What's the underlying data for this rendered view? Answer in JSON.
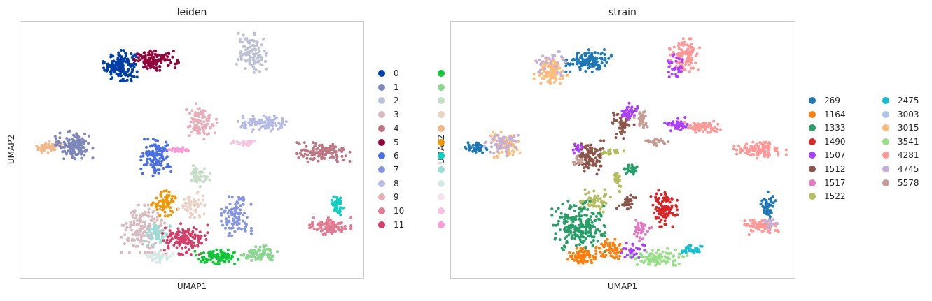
{
  "chart_data": [
    {
      "type": "scatter",
      "title": "leiden",
      "xlabel": "UMAP1",
      "ylabel": "UMAP2",
      "grid": false,
      "legend_position": "right",
      "legend": [
        {
          "label": "0",
          "color": "#023fa5"
        },
        {
          "label": "1",
          "color": "#7d87b9"
        },
        {
          "label": "2",
          "color": "#bec1d4"
        },
        {
          "label": "3",
          "color": "#d6bcc0"
        },
        {
          "label": "4",
          "color": "#bb7784"
        },
        {
          "label": "5",
          "color": "#8e063b"
        },
        {
          "label": "6",
          "color": "#4a6fe3"
        },
        {
          "label": "7",
          "color": "#8595e1"
        },
        {
          "label": "8",
          "color": "#b5bbe3"
        },
        {
          "label": "9",
          "color": "#e6afb9"
        },
        {
          "label": "10",
          "color": "#e07b91"
        },
        {
          "label": "11",
          "color": "#d33f6a"
        },
        {
          "label": "",
          "color": "#11c638"
        },
        {
          "label": "",
          "color": "#8dd593"
        },
        {
          "label": "",
          "color": "#c6dec7"
        },
        {
          "label": "",
          "color": "#ead3c6"
        },
        {
          "label": "",
          "color": "#f0b98d"
        },
        {
          "label": "",
          "color": "#ef9708"
        },
        {
          "label": "",
          "color": "#0fcfc0"
        },
        {
          "label": "",
          "color": "#9cded6"
        },
        {
          "label": "",
          "color": "#d5eae7"
        },
        {
          "label": "",
          "color": "#f3e1eb"
        },
        {
          "label": "",
          "color": "#f6c4e1"
        },
        {
          "label": "",
          "color": "#f79cd4"
        }
      ],
      "clusters": [
        {
          "color": "#023fa5",
          "cx": 0.29,
          "cy": 0.83,
          "rx": 0.045,
          "ry": 0.055,
          "n": 170
        },
        {
          "color": "#8e063b",
          "cx": 0.395,
          "cy": 0.85,
          "rx": 0.06,
          "ry": 0.035,
          "n": 130
        },
        {
          "color": "#bec1d4",
          "cx": 0.675,
          "cy": 0.88,
          "rx": 0.04,
          "ry": 0.07,
          "n": 110
        },
        {
          "color": "#f0b98d",
          "cx": 0.08,
          "cy": 0.51,
          "rx": 0.035,
          "ry": 0.02,
          "n": 60
        },
        {
          "color": "#7d87b9",
          "cx": 0.155,
          "cy": 0.52,
          "rx": 0.05,
          "ry": 0.05,
          "n": 130
        },
        {
          "color": "#e6afb9",
          "cx": 0.525,
          "cy": 0.61,
          "rx": 0.045,
          "ry": 0.065,
          "n": 100
        },
        {
          "color": "#b5bbe3",
          "cx": 0.71,
          "cy": 0.6,
          "rx": 0.07,
          "ry": 0.03,
          "n": 100
        },
        {
          "color": "#bb7784",
          "cx": 0.885,
          "cy": 0.49,
          "rx": 0.07,
          "ry": 0.035,
          "n": 120
        },
        {
          "color": "#4a6fe3",
          "cx": 0.395,
          "cy": 0.47,
          "rx": 0.04,
          "ry": 0.065,
          "n": 110
        },
        {
          "color": "#f79cd4",
          "cx": 0.465,
          "cy": 0.5,
          "rx": 0.04,
          "ry": 0.01,
          "n": 30
        },
        {
          "color": "#f6c4e1",
          "cx": 0.65,
          "cy": 0.53,
          "rx": 0.04,
          "ry": 0.012,
          "n": 25
        },
        {
          "color": "#c6dec7",
          "cx": 0.52,
          "cy": 0.4,
          "rx": 0.03,
          "ry": 0.04,
          "n": 45
        },
        {
          "color": "#ef9708",
          "cx": 0.42,
          "cy": 0.29,
          "rx": 0.035,
          "ry": 0.045,
          "n": 70
        },
        {
          "color": "#ead3c6",
          "cx": 0.505,
          "cy": 0.28,
          "rx": 0.04,
          "ry": 0.05,
          "n": 55
        },
        {
          "color": "#8595e1",
          "cx": 0.63,
          "cy": 0.24,
          "rx": 0.04,
          "ry": 0.07,
          "n": 100
        },
        {
          "color": "#d6bcc0",
          "cx": 0.36,
          "cy": 0.19,
          "rx": 0.06,
          "ry": 0.085,
          "n": 170
        },
        {
          "color": "#9cded6",
          "cx": 0.4,
          "cy": 0.17,
          "rx": 0.035,
          "ry": 0.04,
          "n": 50
        },
        {
          "color": "#d33f6a",
          "cx": 0.48,
          "cy": 0.15,
          "rx": 0.06,
          "ry": 0.055,
          "n": 140
        },
        {
          "color": "#d5eae7",
          "cx": 0.405,
          "cy": 0.08,
          "rx": 0.035,
          "ry": 0.025,
          "n": 45
        },
        {
          "color": "#11c638",
          "cx": 0.575,
          "cy": 0.08,
          "rx": 0.06,
          "ry": 0.025,
          "n": 95
        },
        {
          "color": "#8dd593",
          "cx": 0.695,
          "cy": 0.09,
          "rx": 0.05,
          "ry": 0.03,
          "n": 75
        },
        {
          "color": "#0fcfc0",
          "cx": 0.925,
          "cy": 0.28,
          "rx": 0.02,
          "ry": 0.035,
          "n": 40
        },
        {
          "color": "#e07b91",
          "cx": 0.905,
          "cy": 0.2,
          "rx": 0.055,
          "ry": 0.03,
          "n": 100
        }
      ]
    },
    {
      "type": "scatter",
      "title": "strain",
      "xlabel": "UMAP1",
      "ylabel": "UMAP2",
      "grid": false,
      "legend_position": "right",
      "legend": [
        {
          "label": "269",
          "color": "#1f77b4"
        },
        {
          "label": "1164",
          "color": "#ff7f0e"
        },
        {
          "label": "1333",
          "color": "#279e68"
        },
        {
          "label": "1490",
          "color": "#d62728"
        },
        {
          "label": "1507",
          "color": "#aa40fc"
        },
        {
          "label": "1512",
          "color": "#8c564b"
        },
        {
          "label": "1517",
          "color": "#e377c2"
        },
        {
          "label": "1522",
          "color": "#b5bd61"
        },
        {
          "label": "2475",
          "color": "#17becf"
        },
        {
          "label": "3003",
          "color": "#aec7e8"
        },
        {
          "label": "3015",
          "color": "#ffbb78"
        },
        {
          "label": "3541",
          "color": "#98df8a"
        },
        {
          "label": "4281",
          "color": "#ff9896"
        },
        {
          "label": "4745",
          "color": "#c5b0d5"
        },
        {
          "label": "5578",
          "color": "#c49c94"
        }
      ],
      "clusters": [
        {
          "color": "#1f77b4",
          "cx": 0.4,
          "cy": 0.85,
          "rx": 0.06,
          "ry": 0.04,
          "n": 130
        },
        {
          "color": "#c5b0d5",
          "cx": 0.29,
          "cy": 0.83,
          "rx": 0.04,
          "ry": 0.05,
          "n": 70
        },
        {
          "color": "#ffbb78",
          "cx": 0.29,
          "cy": 0.8,
          "rx": 0.045,
          "ry": 0.05,
          "n": 80
        },
        {
          "color": "#ff9896",
          "cx": 0.68,
          "cy": 0.87,
          "rx": 0.04,
          "ry": 0.06,
          "n": 110
        },
        {
          "color": "#aa40fc",
          "cx": 0.655,
          "cy": 0.83,
          "rx": 0.025,
          "ry": 0.04,
          "n": 30
        },
        {
          "color": "#1f77b4",
          "cx": 0.07,
          "cy": 0.51,
          "rx": 0.03,
          "ry": 0.02,
          "n": 45
        },
        {
          "color": "#ffbb78",
          "cx": 0.15,
          "cy": 0.52,
          "rx": 0.045,
          "ry": 0.045,
          "n": 70
        },
        {
          "color": "#c5b0d5",
          "cx": 0.145,
          "cy": 0.52,
          "rx": 0.045,
          "ry": 0.04,
          "n": 60
        },
        {
          "color": "#8c564b",
          "cx": 0.5,
          "cy": 0.6,
          "rx": 0.03,
          "ry": 0.05,
          "n": 55
        },
        {
          "color": "#aa40fc",
          "cx": 0.515,
          "cy": 0.65,
          "rx": 0.025,
          "ry": 0.03,
          "n": 35
        },
        {
          "color": "#c49c94",
          "cx": 0.555,
          "cy": 0.62,
          "rx": 0.02,
          "ry": 0.03,
          "n": 30
        },
        {
          "color": "#aa40fc",
          "cx": 0.655,
          "cy": 0.6,
          "rx": 0.03,
          "ry": 0.025,
          "n": 40
        },
        {
          "color": "#ff9896",
          "cx": 0.73,
          "cy": 0.59,
          "rx": 0.05,
          "ry": 0.02,
          "n": 60
        },
        {
          "color": "#c49c94",
          "cx": 0.6,
          "cy": 0.53,
          "rx": 0.03,
          "ry": 0.012,
          "n": 25
        },
        {
          "color": "#8c564b",
          "cx": 0.405,
          "cy": 0.47,
          "rx": 0.04,
          "ry": 0.06,
          "n": 100
        },
        {
          "color": "#aa40fc",
          "cx": 0.37,
          "cy": 0.5,
          "rx": 0.015,
          "ry": 0.02,
          "n": 15
        },
        {
          "color": "#c49c94",
          "cx": 0.37,
          "cy": 0.46,
          "rx": 0.015,
          "ry": 0.02,
          "n": 15
        },
        {
          "color": "#b5bd61",
          "cx": 0.465,
          "cy": 0.49,
          "rx": 0.035,
          "ry": 0.01,
          "n": 25
        },
        {
          "color": "#279e68",
          "cx": 0.525,
          "cy": 0.42,
          "rx": 0.025,
          "ry": 0.02,
          "n": 30
        },
        {
          "color": "#b5bd61",
          "cx": 0.485,
          "cy": 0.38,
          "rx": 0.012,
          "ry": 0.04,
          "n": 25
        },
        {
          "color": "#ff9896",
          "cx": 0.9,
          "cy": 0.5,
          "rx": 0.07,
          "ry": 0.03,
          "n": 110
        },
        {
          "color": "#b5bd61",
          "cx": 0.42,
          "cy": 0.3,
          "rx": 0.04,
          "ry": 0.04,
          "n": 60
        },
        {
          "color": "#8c564b",
          "cx": 0.51,
          "cy": 0.29,
          "rx": 0.025,
          "ry": 0.03,
          "n": 30
        },
        {
          "color": "#d62728",
          "cx": 0.62,
          "cy": 0.27,
          "rx": 0.035,
          "ry": 0.065,
          "n": 110
        },
        {
          "color": "#279e68",
          "cx": 0.37,
          "cy": 0.2,
          "rx": 0.07,
          "ry": 0.09,
          "n": 230
        },
        {
          "color": "#ff7f0e",
          "cx": 0.38,
          "cy": 0.08,
          "rx": 0.04,
          "ry": 0.03,
          "n": 70
        },
        {
          "color": "#ff7f0e",
          "cx": 0.46,
          "cy": 0.11,
          "rx": 0.035,
          "ry": 0.035,
          "n": 60
        },
        {
          "color": "#98df8a",
          "cx": 0.6,
          "cy": 0.08,
          "rx": 0.08,
          "ry": 0.03,
          "n": 110
        },
        {
          "color": "#e377c2",
          "cx": 0.55,
          "cy": 0.18,
          "rx": 0.03,
          "ry": 0.05,
          "n": 30
        },
        {
          "color": "#aa40fc",
          "cx": 0.53,
          "cy": 0.11,
          "rx": 0.03,
          "ry": 0.03,
          "n": 25
        },
        {
          "color": "#17becf",
          "cx": 0.7,
          "cy": 0.11,
          "rx": 0.03,
          "ry": 0.015,
          "n": 30
        },
        {
          "color": "#1f77b4",
          "cx": 0.925,
          "cy": 0.28,
          "rx": 0.02,
          "ry": 0.05,
          "n": 45
        },
        {
          "color": "#ff9896",
          "cx": 0.905,
          "cy": 0.2,
          "rx": 0.045,
          "ry": 0.03,
          "n": 80
        },
        {
          "color": "#c5b0d5",
          "cx": 0.93,
          "cy": 0.21,
          "rx": 0.02,
          "ry": 0.02,
          "n": 20
        }
      ]
    }
  ]
}
